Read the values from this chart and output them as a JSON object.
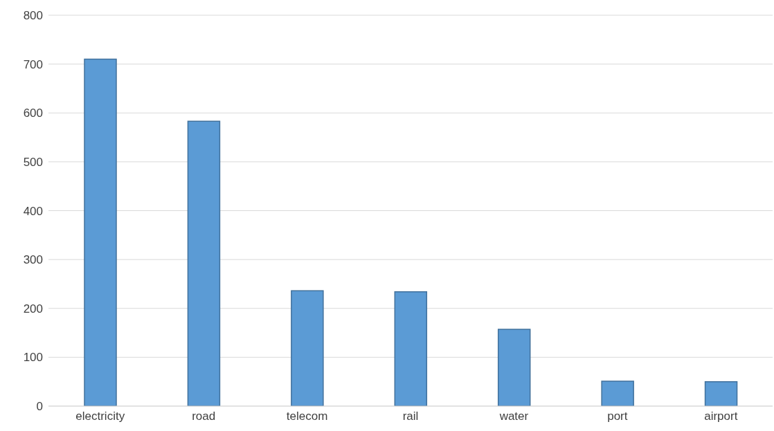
{
  "chart_data": {
    "type": "bar",
    "categories": [
      "electricity",
      "road",
      "telecom",
      "rail",
      "water",
      "port",
      "airport"
    ],
    "values": [
      710,
      583,
      236,
      234,
      157,
      51,
      50
    ],
    "color": "#5b9bd5",
    "ylim": [
      0,
      800
    ],
    "yticks": [
      0,
      100,
      200,
      300,
      400,
      500,
      600,
      700,
      800
    ],
    "grid": "y",
    "legend": false
  }
}
